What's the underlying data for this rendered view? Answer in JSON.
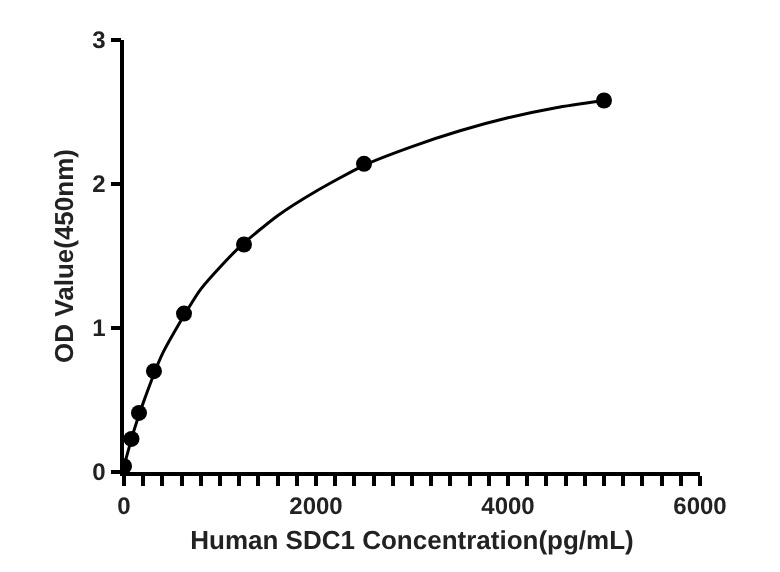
{
  "chart_data": {
    "type": "scatter",
    "xlabel": "Human SDC1 Concentration(pg/mL)",
    "ylabel": "OD Value(450nm)",
    "xlim": [
      0,
      6000
    ],
    "ylim": [
      0,
      3
    ],
    "xticks": [
      0,
      {
        "value": 200,
        "label": null
      },
      {
        "value": 400,
        "label": null
      },
      {
        "value": 600,
        "label": null
      },
      {
        "value": 800,
        "label": null
      },
      {
        "value": 1000,
        "label": null
      },
      {
        "value": 1200,
        "label": null
      },
      {
        "value": 1400,
        "label": null
      },
      {
        "value": 1600,
        "label": null
      },
      {
        "value": 1800,
        "label": null
      },
      2000,
      {
        "value": 2200,
        "label": null
      },
      {
        "value": 2400,
        "label": null
      },
      {
        "value": 2600,
        "label": null
      },
      {
        "value": 2800,
        "label": null
      },
      {
        "value": 3000,
        "label": null
      },
      {
        "value": 3200,
        "label": null
      },
      {
        "value": 3400,
        "label": null
      },
      {
        "value": 3600,
        "label": null
      },
      {
        "value": 3800,
        "label": null
      },
      4000,
      {
        "value": 4200,
        "label": null
      },
      {
        "value": 4400,
        "label": null
      },
      {
        "value": 4600,
        "label": null
      },
      {
        "value": 4800,
        "label": null
      },
      {
        "value": 5000,
        "label": null
      },
      {
        "value": 5200,
        "label": null
      },
      {
        "value": 5400,
        "label": null
      },
      {
        "value": 5600,
        "label": null
      },
      {
        "value": 5800,
        "label": null
      },
      6000
    ],
    "yticks": [
      0,
      1,
      2,
      3
    ],
    "grid": false,
    "marker": "circle",
    "series": [
      {
        "type": "line",
        "color": "#000000",
        "marker": "none",
        "line_style": "solid",
        "x": [
          0,
          100,
          200,
          400,
          800,
          1200,
          1600,
          2000,
          2500,
          3000,
          3500,
          4000,
          4500,
          5000
        ],
        "values": [
          0.04,
          0.28,
          0.48,
          0.82,
          1.27,
          1.56,
          1.78,
          1.95,
          2.13,
          2.26,
          2.37,
          2.46,
          2.53,
          2.58
        ]
      },
      {
        "color": "#000000",
        "x": [
          0,
          78,
          156,
          312,
          625,
          1250,
          2500,
          5000
        ],
        "values": [
          0.04,
          0.23,
          0.41,
          0.7,
          1.1,
          1.58,
          2.14,
          2.58
        ]
      }
    ]
  }
}
